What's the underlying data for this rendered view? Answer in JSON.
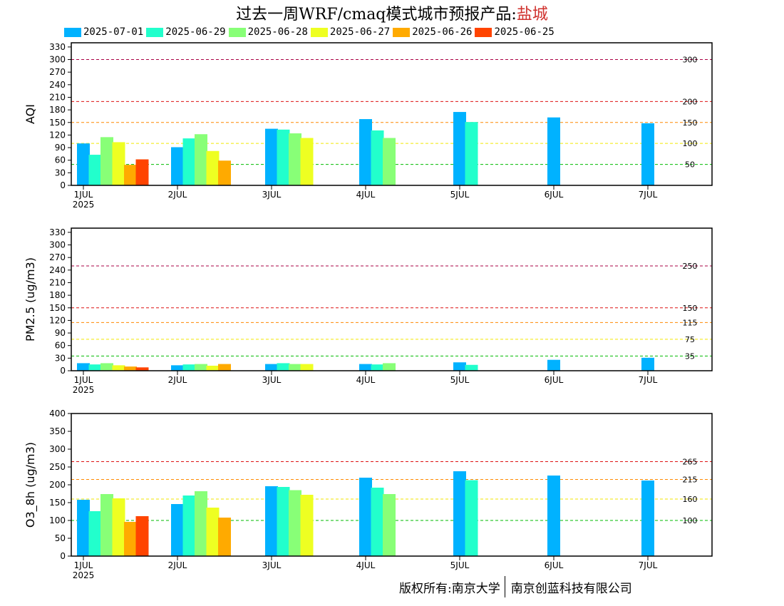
{
  "title": {
    "prefix": "过去一周WRF/cmaq模式城市预报产品:",
    "city": "盐城"
  },
  "legend": [
    {
      "label": "2025-07-01",
      "color": "#00b2ff"
    },
    {
      "label": "2025-06-29",
      "color": "#22ffcc"
    },
    {
      "label": "2025-06-28",
      "color": "#88ff77"
    },
    {
      "label": "2025-06-27",
      "color": "#eeff22"
    },
    {
      "label": "2025-06-26",
      "color": "#ffaa00"
    },
    {
      "label": "2025-06-25",
      "color": "#ff4400"
    }
  ],
  "footer": {
    "left": "版权所有:南京大学",
    "right": "南京创蓝科技有限公司"
  },
  "chart_data": [
    {
      "type": "bar",
      "ylabel": "AQI",
      "ylim": [
        0,
        340
      ],
      "yticks": [
        0,
        30,
        60,
        90,
        120,
        150,
        180,
        210,
        240,
        270,
        300,
        330
      ],
      "categories": [
        "1JUL",
        "2JUL",
        "3JUL",
        "4JUL",
        "5JUL",
        "6JUL",
        "7JUL"
      ],
      "first_sublabel": "2025",
      "thresholds": [
        {
          "value": 300,
          "label": "300",
          "color": "#aa0044"
        },
        {
          "value": 200,
          "label": "200",
          "color": "#dd1111"
        },
        {
          "value": 150,
          "label": "150",
          "color": "#ff8800"
        },
        {
          "value": 100,
          "label": "100",
          "color": "#f2e600"
        },
        {
          "value": 50,
          "label": "50",
          "color": "#00bb00"
        }
      ],
      "series": [
        {
          "name": "2025-07-01",
          "values": [
            100,
            91,
            135,
            158,
            175,
            162,
            148
          ]
        },
        {
          "name": "2025-06-29",
          "values": [
            73,
            112,
            133,
            131,
            151,
            null,
            null
          ]
        },
        {
          "name": "2025-06-28",
          "values": [
            115,
            122,
            124,
            113,
            null,
            null,
            null
          ]
        },
        {
          "name": "2025-06-27",
          "values": [
            103,
            82,
            113,
            null,
            null,
            null,
            null
          ]
        },
        {
          "name": "2025-06-26",
          "values": [
            49,
            59,
            null,
            null,
            null,
            null,
            null
          ]
        },
        {
          "name": "2025-06-25",
          "values": [
            62,
            null,
            null,
            null,
            null,
            null,
            null
          ]
        }
      ]
    },
    {
      "type": "bar",
      "ylabel": "PM2.5 (ug/m3)",
      "ylim": [
        0,
        340
      ],
      "yticks": [
        0,
        30,
        60,
        90,
        120,
        150,
        180,
        210,
        240,
        270,
        300,
        330
      ],
      "categories": [
        "1JUL",
        "2JUL",
        "3JUL",
        "4JUL",
        "5JUL",
        "6JUL",
        "7JUL"
      ],
      "first_sublabel": "2025",
      "thresholds": [
        {
          "value": 250,
          "label": "250",
          "color": "#aa0044"
        },
        {
          "value": 150,
          "label": "150",
          "color": "#dd1111"
        },
        {
          "value": 115,
          "label": "115",
          "color": "#ff8800"
        },
        {
          "value": 75,
          "label": "75",
          "color": "#f2e600"
        },
        {
          "value": 35,
          "label": "35",
          "color": "#00bb00"
        }
      ],
      "series": [
        {
          "name": "2025-07-01",
          "values": [
            18,
            13,
            16,
            16,
            20,
            26,
            31
          ]
        },
        {
          "name": "2025-06-29",
          "values": [
            15,
            15,
            18,
            15,
            14,
            null,
            null
          ]
        },
        {
          "name": "2025-06-28",
          "values": [
            18,
            16,
            16,
            18,
            null,
            null,
            null
          ]
        },
        {
          "name": "2025-06-27",
          "values": [
            13,
            12,
            16,
            null,
            null,
            null,
            null
          ]
        },
        {
          "name": "2025-06-26",
          "values": [
            10,
            16,
            null,
            null,
            null,
            null,
            null
          ]
        },
        {
          "name": "2025-06-25",
          "values": [
            8,
            null,
            null,
            null,
            null,
            null,
            null
          ]
        }
      ]
    },
    {
      "type": "bar",
      "ylabel": "O3_8h (ug/m3)",
      "ylim": [
        0,
        400
      ],
      "yticks": [
        0,
        50,
        100,
        150,
        200,
        250,
        300,
        350,
        400
      ],
      "categories": [
        "1JUL",
        "2JUL",
        "3JUL",
        "4JUL",
        "5JUL",
        "6JUL",
        "7JUL"
      ],
      "first_sublabel": "2025",
      "thresholds": [
        {
          "value": 265,
          "label": "265",
          "color": "#dd1111"
        },
        {
          "value": 215,
          "label": "215",
          "color": "#ff8800"
        },
        {
          "value": 160,
          "label": "160",
          "color": "#f2e600"
        },
        {
          "value": 100,
          "label": "100",
          "color": "#00bb00"
        }
      ],
      "series": [
        {
          "name": "2025-07-01",
          "values": [
            158,
            146,
            196,
            220,
            238,
            226,
            212
          ]
        },
        {
          "name": "2025-06-29",
          "values": [
            126,
            170,
            194,
            192,
            213,
            null,
            null
          ]
        },
        {
          "name": "2025-06-28",
          "values": [
            174,
            182,
            185,
            174,
            null,
            null,
            null
          ]
        },
        {
          "name": "2025-06-27",
          "values": [
            162,
            136,
            172,
            null,
            null,
            null,
            null
          ]
        },
        {
          "name": "2025-06-26",
          "values": [
            96,
            108,
            null,
            null,
            null,
            null,
            null
          ]
        },
        {
          "name": "2025-06-25",
          "values": [
            112,
            null,
            null,
            null,
            null,
            null,
            null
          ]
        }
      ]
    }
  ]
}
